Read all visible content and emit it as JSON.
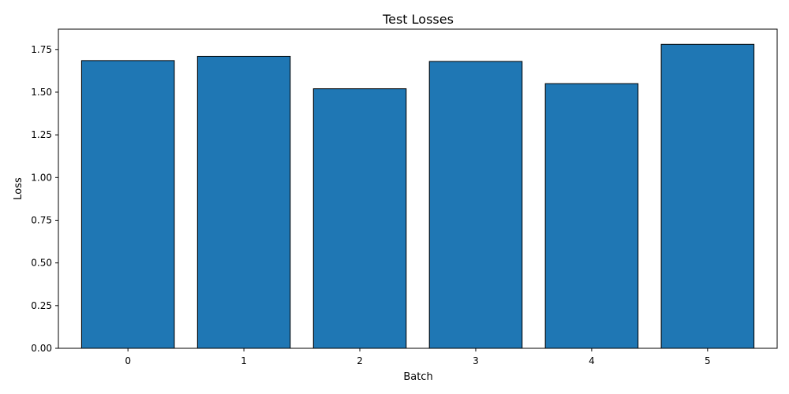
{
  "chart_data": {
    "type": "bar",
    "title": "Test Losses",
    "xlabel": "Batch",
    "ylabel": "Loss",
    "categories": [
      "0",
      "1",
      "2",
      "3",
      "4",
      "5"
    ],
    "values": [
      1.685,
      1.71,
      1.52,
      1.68,
      1.55,
      1.78
    ],
    "ylim": [
      0,
      1.869
    ],
    "yticks": [
      0.0,
      0.25,
      0.5,
      0.75,
      1.0,
      1.25,
      1.5,
      1.75
    ],
    "ytick_labels": [
      "0.00",
      "0.25",
      "0.50",
      "0.75",
      "1.00",
      "1.25",
      "1.50",
      "1.75"
    ],
    "bar_color": "#1f77b4",
    "edge_color": "#000000",
    "grid": false
  }
}
